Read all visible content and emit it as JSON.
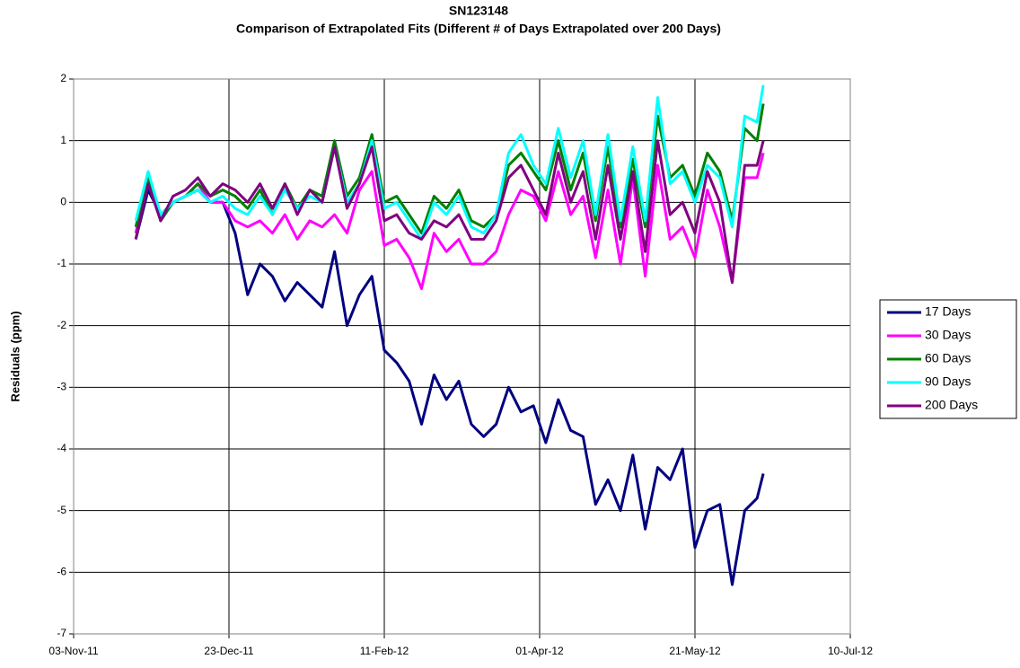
{
  "chart_data": {
    "type": "line",
    "title": "SN123148",
    "subtitle": "Comparison of Extrapolated Fits (Different # of Days Extrapolated over 200 Days)",
    "y_label": "Residuals (ppm)",
    "x": [
      "2011-11-23",
      "2011-11-27",
      "2011-12-01",
      "2011-12-05",
      "2011-12-09",
      "2011-12-13",
      "2011-12-17",
      "2011-12-21",
      "2011-12-25",
      "2011-12-29",
      "2012-01-02",
      "2012-01-06",
      "2012-01-10",
      "2012-01-14",
      "2012-01-18",
      "2012-01-22",
      "2012-01-26",
      "2012-01-30",
      "2012-02-03",
      "2012-02-07",
      "2012-02-11",
      "2012-02-15",
      "2012-02-19",
      "2012-02-23",
      "2012-02-27",
      "2012-03-02",
      "2012-03-06",
      "2012-03-10",
      "2012-03-14",
      "2012-03-18",
      "2012-03-22",
      "2012-03-26",
      "2012-03-30",
      "2012-04-03",
      "2012-04-07",
      "2012-04-11",
      "2012-04-15",
      "2012-04-19",
      "2012-04-23",
      "2012-04-27",
      "2012-05-01",
      "2012-05-05",
      "2012-05-09",
      "2012-05-13",
      "2012-05-17",
      "2012-05-21",
      "2012-05-25",
      "2012-05-29",
      "2012-06-02",
      "2012-06-06",
      "2012-06-10",
      "2012-06-12"
    ],
    "series": [
      {
        "name": "17 Days",
        "color": "#000080",
        "values": [
          -0.6,
          0.2,
          -0.2,
          0.0,
          0.1,
          0.2,
          0.0,
          0.0,
          -0.5,
          -1.5,
          -1.0,
          -1.2,
          -1.6,
          -1.3,
          -1.5,
          -1.7,
          -0.8,
          -2.0,
          -1.5,
          -1.2,
          -2.4,
          -2.6,
          -2.9,
          -3.6,
          -2.8,
          -3.2,
          -2.9,
          -3.6,
          -3.8,
          -3.6,
          -3.0,
          -3.4,
          -3.3,
          -3.9,
          -3.2,
          -3.7,
          -3.8,
          -4.9,
          -4.5,
          -5.0,
          -4.1,
          -5.3,
          -4.3,
          -4.5,
          -4.0,
          -5.6,
          -5.0,
          -4.9,
          -6.2,
          -5.0,
          -4.8,
          -4.4
        ]
      },
      {
        "name": "30 Days",
        "color": "#ff00ff",
        "values": [
          -0.5,
          0.4,
          -0.3,
          0.0,
          0.1,
          0.3,
          0.0,
          0.0,
          -0.3,
          -0.4,
          -0.3,
          -0.5,
          -0.2,
          -0.6,
          -0.3,
          -0.4,
          -0.2,
          -0.5,
          0.2,
          0.5,
          -0.7,
          -0.6,
          -0.9,
          -1.4,
          -0.5,
          -0.8,
          -0.6,
          -1.0,
          -1.0,
          -0.8,
          -0.2,
          0.2,
          0.1,
          -0.3,
          0.5,
          -0.2,
          0.1,
          -0.9,
          0.2,
          -1.0,
          0.4,
          -1.2,
          0.6,
          -0.6,
          -0.4,
          -0.9,
          0.2,
          -0.4,
          -1.3,
          0.4,
          0.4,
          0.8
        ]
      },
      {
        "name": "60 Days",
        "color": "#008000",
        "values": [
          -0.4,
          0.4,
          -0.3,
          0.0,
          0.1,
          0.3,
          0.1,
          0.2,
          0.1,
          -0.1,
          0.2,
          -0.2,
          0.3,
          -0.1,
          0.2,
          0.1,
          1.0,
          0.1,
          0.4,
          1.1,
          0.0,
          0.1,
          -0.2,
          -0.5,
          0.1,
          -0.1,
          0.2,
          -0.3,
          -0.4,
          -0.2,
          0.6,
          0.8,
          0.5,
          0.2,
          1.0,
          0.2,
          0.8,
          -0.3,
          0.9,
          -0.4,
          0.7,
          -0.4,
          1.4,
          0.4,
          0.6,
          0.1,
          0.8,
          0.5,
          -0.3,
          1.2,
          1.0,
          1.6
        ]
      },
      {
        "name": "90 Days",
        "color": "#00ffff",
        "values": [
          -0.3,
          0.5,
          -0.2,
          0.0,
          0.1,
          0.2,
          0.0,
          0.1,
          -0.1,
          -0.2,
          0.1,
          -0.2,
          0.2,
          -0.1,
          0.1,
          0.0,
          0.9,
          0.0,
          0.3,
          1.0,
          -0.1,
          0.0,
          -0.3,
          -0.6,
          0.0,
          -0.2,
          0.1,
          -0.4,
          -0.5,
          -0.2,
          0.8,
          1.1,
          0.6,
          0.3,
          1.2,
          0.4,
          1.0,
          -0.2,
          1.1,
          -0.3,
          0.9,
          -0.3,
          1.7,
          0.3,
          0.5,
          0.0,
          0.6,
          0.4,
          -0.4,
          1.4,
          1.3,
          1.9
        ]
      },
      {
        "name": "200 Days",
        "color": "#800080",
        "values": [
          -0.6,
          0.3,
          -0.3,
          0.1,
          0.2,
          0.4,
          0.1,
          0.3,
          0.2,
          0.0,
          0.3,
          -0.1,
          0.3,
          -0.2,
          0.2,
          0.0,
          0.9,
          -0.1,
          0.3,
          0.9,
          -0.3,
          -0.2,
          -0.5,
          -0.6,
          -0.3,
          -0.4,
          -0.2,
          -0.6,
          -0.6,
          -0.3,
          0.4,
          0.6,
          0.2,
          -0.2,
          0.8,
          0.0,
          0.5,
          -0.6,
          0.6,
          -0.6,
          0.5,
          -0.8,
          1.0,
          -0.2,
          0.0,
          -0.5,
          0.5,
          0.0,
          -1.3,
          0.6,
          0.6,
          1.0
        ]
      }
    ],
    "xlim": [
      "2011-11-03",
      "2012-07-10"
    ],
    "xticks": [
      {
        "value": "2011-11-03",
        "label": "03-Nov-11"
      },
      {
        "value": "2011-12-23",
        "label": "23-Dec-11"
      },
      {
        "value": "2012-02-11",
        "label": "11-Feb-12"
      },
      {
        "value": "2012-04-01",
        "label": "01-Apr-12"
      },
      {
        "value": "2012-05-21",
        "label": "21-May-12"
      },
      {
        "value": "2012-07-10",
        "label": "10-Jul-12"
      }
    ],
    "ylim": [
      -7,
      2
    ],
    "yticks": [
      -7,
      -6,
      -5,
      -4,
      -3,
      -2,
      -1,
      0,
      1,
      2
    ],
    "grid": true,
    "legend": "right"
  }
}
